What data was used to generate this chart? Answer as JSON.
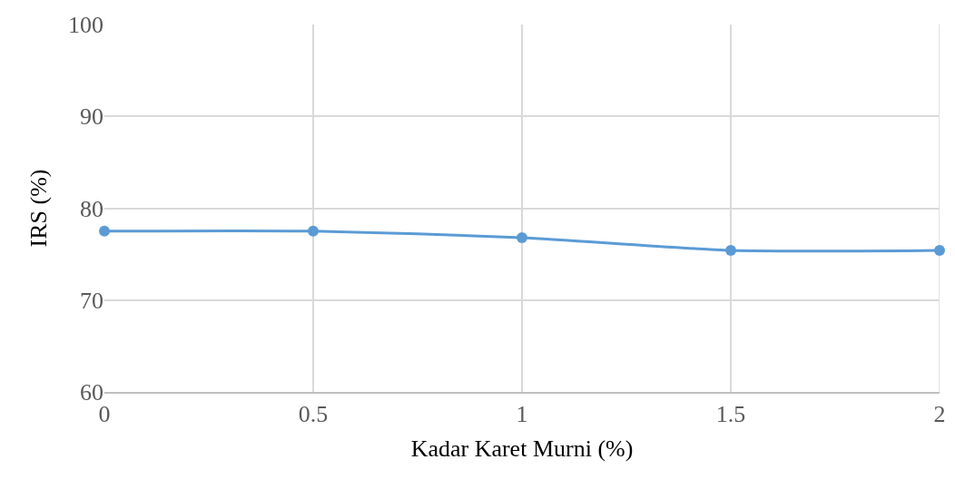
{
  "chart_data": {
    "type": "line",
    "xlabel": "Kadar Karet Murni (%)",
    "ylabel": "IRS (%)",
    "x": [
      0,
      0.5,
      1,
      1.5,
      2
    ],
    "series": [
      {
        "color": "#5b9bd5",
        "values": [
          77.5,
          77.5,
          76.8,
          75.4,
          75.4
        ]
      }
    ],
    "xlim": [
      0,
      2
    ],
    "xticks": [
      0,
      0.5,
      1,
      1.5,
      2
    ],
    "ylim": [
      60,
      100
    ],
    "yticks": [
      60,
      70,
      80,
      90,
      100
    ],
    "grid": true,
    "marker": "circle",
    "line_style": "solid",
    "legend": false
  }
}
